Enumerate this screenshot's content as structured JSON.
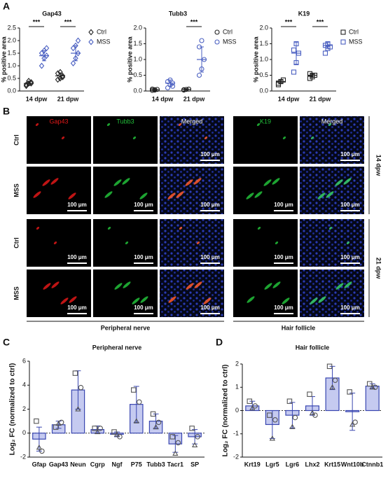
{
  "image_panel": {
    "panel": "B",
    "columns": [
      "Gap43",
      "Tubb3",
      "Merged",
      "K19",
      "Merged"
    ],
    "rows": [
      "Ctrl",
      "MSS",
      "Ctrl",
      "MSS"
    ],
    "timepoints": [
      "14 dpw",
      "21 dpw"
    ],
    "scale_bar": "100 μm",
    "groups": [
      "Peripheral nerve",
      "Hair follicle"
    ]
  },
  "chart_data": [
    {
      "panel": "A",
      "type": "dot",
      "title": "Gap43",
      "y_label": "% positive area",
      "categories": [
        "14 dpw",
        "21 dpw"
      ],
      "marker": "diamond",
      "legend": "upper right",
      "ylim": [
        0,
        2.5
      ],
      "yticks": [
        {
          "value": 0,
          "label": "0.0"
        },
        0.5,
        {
          "value": 1,
          "label": "1.0"
        },
        1.5,
        {
          "value": 2,
          "label": "2.0"
        },
        2.5
      ],
      "significance": [
        "***",
        "***"
      ],
      "series": [
        {
          "name": "Ctrl",
          "color": "#222222",
          "values": [
            0.3,
            0.6
          ],
          "errors": [
            0.08,
            0.12
          ],
          "points": [
            [
              0.2,
              0.3,
              0.35,
              0.25,
              0.4,
              0.3
            ],
            [
              0.45,
              0.5,
              0.6,
              0.7,
              0.75,
              0.55
            ]
          ]
        },
        {
          "name": "MSS",
          "color": "#4a5fc1",
          "values": [
            1.4,
            1.5
          ],
          "errors": [
            0.2,
            0.3
          ],
          "points": [
            [
              1.0,
              1.3,
              1.4,
              1.5,
              1.6,
              1.7
            ],
            [
              1.1,
              1.3,
              1.5,
              1.7,
              1.8,
              2.0
            ]
          ]
        }
      ]
    },
    {
      "type": "dot",
      "title": "Tubb3",
      "y_label": "% positive area",
      "categories": [
        "14 dpw",
        "21 dpw"
      ],
      "marker": "circle",
      "legend": "upper right",
      "ylim": [
        0,
        2.0
      ],
      "yticks": [
        {
          "value": 0,
          "label": "0.0"
        },
        0.5,
        {
          "value": 1,
          "label": "1.0"
        },
        1.5,
        {
          "value": 2,
          "label": "2.0"
        }
      ],
      "significance": [
        null,
        "***"
      ],
      "series": [
        {
          "name": "Ctrl",
          "color": "#222222",
          "values": [
            0.04,
            0.05
          ],
          "errors": [
            0.02,
            0.02
          ],
          "points": [
            [
              0.02,
              0.04,
              0.05,
              0.06,
              0.03
            ],
            [
              0.03,
              0.05,
              0.06,
              0.04
            ]
          ]
        },
        {
          "name": "MSS",
          "color": "#4a5fc1",
          "values": [
            0.25,
            1.0
          ],
          "errors": [
            0.1,
            0.4
          ],
          "points": [
            [
              0.1,
              0.2,
              0.25,
              0.3,
              0.35,
              0.15
            ],
            [
              0.5,
              0.7,
              1.0,
              1.4,
              1.6
            ]
          ]
        }
      ]
    },
    {
      "type": "dot",
      "title": "K19",
      "y_label": "% positive area",
      "categories": [
        "14 dpw",
        "21 dpw"
      ],
      "marker": "square",
      "legend": "upper right",
      "ylim": [
        0,
        2.0
      ],
      "yticks": [
        {
          "value": 0,
          "label": "0.0"
        },
        0.5,
        {
          "value": 1,
          "label": "1.0"
        },
        1.5,
        {
          "value": 2,
          "label": "2.0"
        }
      ],
      "significance": [
        "***",
        "***"
      ],
      "series": [
        {
          "name": "Ctrl",
          "color": "#222222",
          "values": [
            0.3,
            0.5
          ],
          "errors": [
            0.05,
            0.05
          ],
          "points": [
            [
              0.2,
              0.3,
              0.35,
              0.25,
              0.3
            ],
            [
              0.4,
              0.45,
              0.5,
              0.55,
              0.5
            ]
          ]
        },
        {
          "name": "MSS",
          "color": "#4a5fc1",
          "values": [
            1.2,
            1.45
          ],
          "errors": [
            0.35,
            0.1
          ],
          "points": [
            [
              0.6,
              0.9,
              1.2,
              1.3,
              1.5
            ],
            [
              1.2,
              1.35,
              1.4,
              1.45,
              1.5
            ]
          ]
        }
      ]
    },
    {
      "panel": "C",
      "type": "bar",
      "title": "Peripheral nerve",
      "y_label": "Log₂ FC (normalized to ctrl)",
      "categories": [
        "Gfap",
        "Gap43",
        "Neun",
        "Cgrp",
        "Ngf",
        "P75",
        "Tubb3",
        "Tacr1",
        "SP"
      ],
      "values": [
        -0.5,
        0.7,
        3.6,
        0.3,
        -0.1,
        2.4,
        1.0,
        -0.9,
        -0.3
      ],
      "errors": [
        1.0,
        0.3,
        1.6,
        0.3,
        0.2,
        1.5,
        0.6,
        0.7,
        0.6
      ],
      "points": [
        [
          1.0,
          -1.2,
          -1.5
        ],
        [
          0.5,
          0.8,
          0.9
        ],
        [
          5.0,
          2.0,
          3.8
        ],
        [
          0.4,
          0.1,
          0.4
        ],
        [
          0.1,
          -0.1,
          -0.3
        ],
        [
          3.6,
          1.0,
          2.6
        ],
        [
          1.6,
          0.5,
          0.9
        ],
        [
          -0.3,
          -1.7,
          -0.8
        ],
        [
          0.4,
          -1.0,
          -0.3
        ]
      ],
      "color": "#c5caf0",
      "edge_color": "#3946b0",
      "ylim": [
        -2,
        6
      ],
      "yticks": [
        -2,
        0,
        2,
        4,
        6
      ]
    },
    {
      "panel": "D",
      "type": "bar",
      "title": "Hair follicle",
      "y_label": "Log₂ FC (normalized to ctrl)",
      "categories": [
        "Krt19",
        "Lgr5",
        "Lgr6",
        "Lhx2",
        "Krt15",
        "Wnt10b",
        "Ctnnb1"
      ],
      "values": [
        0.2,
        -0.6,
        -0.2,
        0.2,
        1.4,
        -0.05,
        1.05
      ],
      "errors": [
        0.2,
        0.6,
        0.55,
        0.4,
        0.5,
        0.8,
        0.1
      ],
      "points": [
        [
          0.4,
          0.1,
          0.2
        ],
        [
          -0.2,
          -1.2,
          -0.4
        ],
        [
          0.4,
          -0.7,
          -0.3
        ],
        [
          0.7,
          -0.1,
          -0.2
        ],
        [
          1.9,
          1.0,
          1.3
        ],
        [
          0.8,
          -0.6,
          -0.5
        ],
        [
          1.15,
          1.0,
          1.0
        ]
      ],
      "color": "#c5caf0",
      "edge_color": "#3946b0",
      "ylim": [
        -2,
        2
      ],
      "yticks": [
        -2,
        -1,
        0,
        1,
        2
      ]
    }
  ]
}
